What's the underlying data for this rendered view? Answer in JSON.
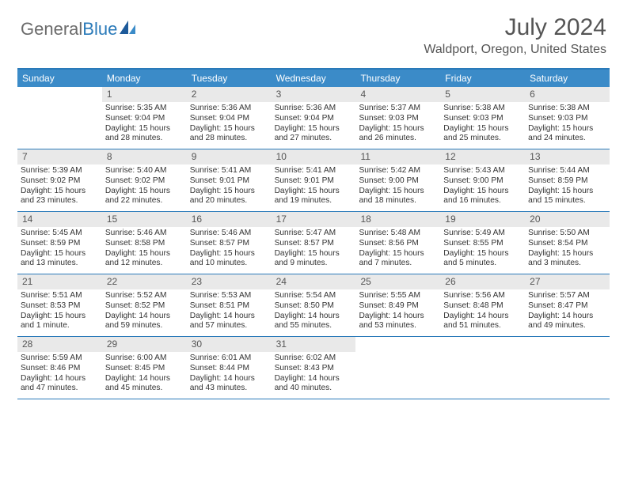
{
  "brand": {
    "part1": "General",
    "part2": "Blue"
  },
  "title": "July 2024",
  "location": "Waldport, Oregon, United States",
  "colors": {
    "header_bg": "#3b8bc8",
    "border": "#2a7ab9",
    "daynum_bg": "#e9e9e9",
    "text": "#333333",
    "muted": "#555555"
  },
  "day_headers": [
    "Sunday",
    "Monday",
    "Tuesday",
    "Wednesday",
    "Thursday",
    "Friday",
    "Saturday"
  ],
  "weeks": [
    [
      {
        "n": "",
        "sr": "",
        "ss": "",
        "dl": ""
      },
      {
        "n": "1",
        "sr": "Sunrise: 5:35 AM",
        "ss": "Sunset: 9:04 PM",
        "dl": "Daylight: 15 hours and 28 minutes."
      },
      {
        "n": "2",
        "sr": "Sunrise: 5:36 AM",
        "ss": "Sunset: 9:04 PM",
        "dl": "Daylight: 15 hours and 28 minutes."
      },
      {
        "n": "3",
        "sr": "Sunrise: 5:36 AM",
        "ss": "Sunset: 9:04 PM",
        "dl": "Daylight: 15 hours and 27 minutes."
      },
      {
        "n": "4",
        "sr": "Sunrise: 5:37 AM",
        "ss": "Sunset: 9:03 PM",
        "dl": "Daylight: 15 hours and 26 minutes."
      },
      {
        "n": "5",
        "sr": "Sunrise: 5:38 AM",
        "ss": "Sunset: 9:03 PM",
        "dl": "Daylight: 15 hours and 25 minutes."
      },
      {
        "n": "6",
        "sr": "Sunrise: 5:38 AM",
        "ss": "Sunset: 9:03 PM",
        "dl": "Daylight: 15 hours and 24 minutes."
      }
    ],
    [
      {
        "n": "7",
        "sr": "Sunrise: 5:39 AM",
        "ss": "Sunset: 9:02 PM",
        "dl": "Daylight: 15 hours and 23 minutes."
      },
      {
        "n": "8",
        "sr": "Sunrise: 5:40 AM",
        "ss": "Sunset: 9:02 PM",
        "dl": "Daylight: 15 hours and 22 minutes."
      },
      {
        "n": "9",
        "sr": "Sunrise: 5:41 AM",
        "ss": "Sunset: 9:01 PM",
        "dl": "Daylight: 15 hours and 20 minutes."
      },
      {
        "n": "10",
        "sr": "Sunrise: 5:41 AM",
        "ss": "Sunset: 9:01 PM",
        "dl": "Daylight: 15 hours and 19 minutes."
      },
      {
        "n": "11",
        "sr": "Sunrise: 5:42 AM",
        "ss": "Sunset: 9:00 PM",
        "dl": "Daylight: 15 hours and 18 minutes."
      },
      {
        "n": "12",
        "sr": "Sunrise: 5:43 AM",
        "ss": "Sunset: 9:00 PM",
        "dl": "Daylight: 15 hours and 16 minutes."
      },
      {
        "n": "13",
        "sr": "Sunrise: 5:44 AM",
        "ss": "Sunset: 8:59 PM",
        "dl": "Daylight: 15 hours and 15 minutes."
      }
    ],
    [
      {
        "n": "14",
        "sr": "Sunrise: 5:45 AM",
        "ss": "Sunset: 8:59 PM",
        "dl": "Daylight: 15 hours and 13 minutes."
      },
      {
        "n": "15",
        "sr": "Sunrise: 5:46 AM",
        "ss": "Sunset: 8:58 PM",
        "dl": "Daylight: 15 hours and 12 minutes."
      },
      {
        "n": "16",
        "sr": "Sunrise: 5:46 AM",
        "ss": "Sunset: 8:57 PM",
        "dl": "Daylight: 15 hours and 10 minutes."
      },
      {
        "n": "17",
        "sr": "Sunrise: 5:47 AM",
        "ss": "Sunset: 8:57 PM",
        "dl": "Daylight: 15 hours and 9 minutes."
      },
      {
        "n": "18",
        "sr": "Sunrise: 5:48 AM",
        "ss": "Sunset: 8:56 PM",
        "dl": "Daylight: 15 hours and 7 minutes."
      },
      {
        "n": "19",
        "sr": "Sunrise: 5:49 AM",
        "ss": "Sunset: 8:55 PM",
        "dl": "Daylight: 15 hours and 5 minutes."
      },
      {
        "n": "20",
        "sr": "Sunrise: 5:50 AM",
        "ss": "Sunset: 8:54 PM",
        "dl": "Daylight: 15 hours and 3 minutes."
      }
    ],
    [
      {
        "n": "21",
        "sr": "Sunrise: 5:51 AM",
        "ss": "Sunset: 8:53 PM",
        "dl": "Daylight: 15 hours and 1 minute."
      },
      {
        "n": "22",
        "sr": "Sunrise: 5:52 AM",
        "ss": "Sunset: 8:52 PM",
        "dl": "Daylight: 14 hours and 59 minutes."
      },
      {
        "n": "23",
        "sr": "Sunrise: 5:53 AM",
        "ss": "Sunset: 8:51 PM",
        "dl": "Daylight: 14 hours and 57 minutes."
      },
      {
        "n": "24",
        "sr": "Sunrise: 5:54 AM",
        "ss": "Sunset: 8:50 PM",
        "dl": "Daylight: 14 hours and 55 minutes."
      },
      {
        "n": "25",
        "sr": "Sunrise: 5:55 AM",
        "ss": "Sunset: 8:49 PM",
        "dl": "Daylight: 14 hours and 53 minutes."
      },
      {
        "n": "26",
        "sr": "Sunrise: 5:56 AM",
        "ss": "Sunset: 8:48 PM",
        "dl": "Daylight: 14 hours and 51 minutes."
      },
      {
        "n": "27",
        "sr": "Sunrise: 5:57 AM",
        "ss": "Sunset: 8:47 PM",
        "dl": "Daylight: 14 hours and 49 minutes."
      }
    ],
    [
      {
        "n": "28",
        "sr": "Sunrise: 5:59 AM",
        "ss": "Sunset: 8:46 PM",
        "dl": "Daylight: 14 hours and 47 minutes."
      },
      {
        "n": "29",
        "sr": "Sunrise: 6:00 AM",
        "ss": "Sunset: 8:45 PM",
        "dl": "Daylight: 14 hours and 45 minutes."
      },
      {
        "n": "30",
        "sr": "Sunrise: 6:01 AM",
        "ss": "Sunset: 8:44 PM",
        "dl": "Daylight: 14 hours and 43 minutes."
      },
      {
        "n": "31",
        "sr": "Sunrise: 6:02 AM",
        "ss": "Sunset: 8:43 PM",
        "dl": "Daylight: 14 hours and 40 minutes."
      },
      {
        "n": "",
        "sr": "",
        "ss": "",
        "dl": ""
      },
      {
        "n": "",
        "sr": "",
        "ss": "",
        "dl": ""
      },
      {
        "n": "",
        "sr": "",
        "ss": "",
        "dl": ""
      }
    ]
  ]
}
